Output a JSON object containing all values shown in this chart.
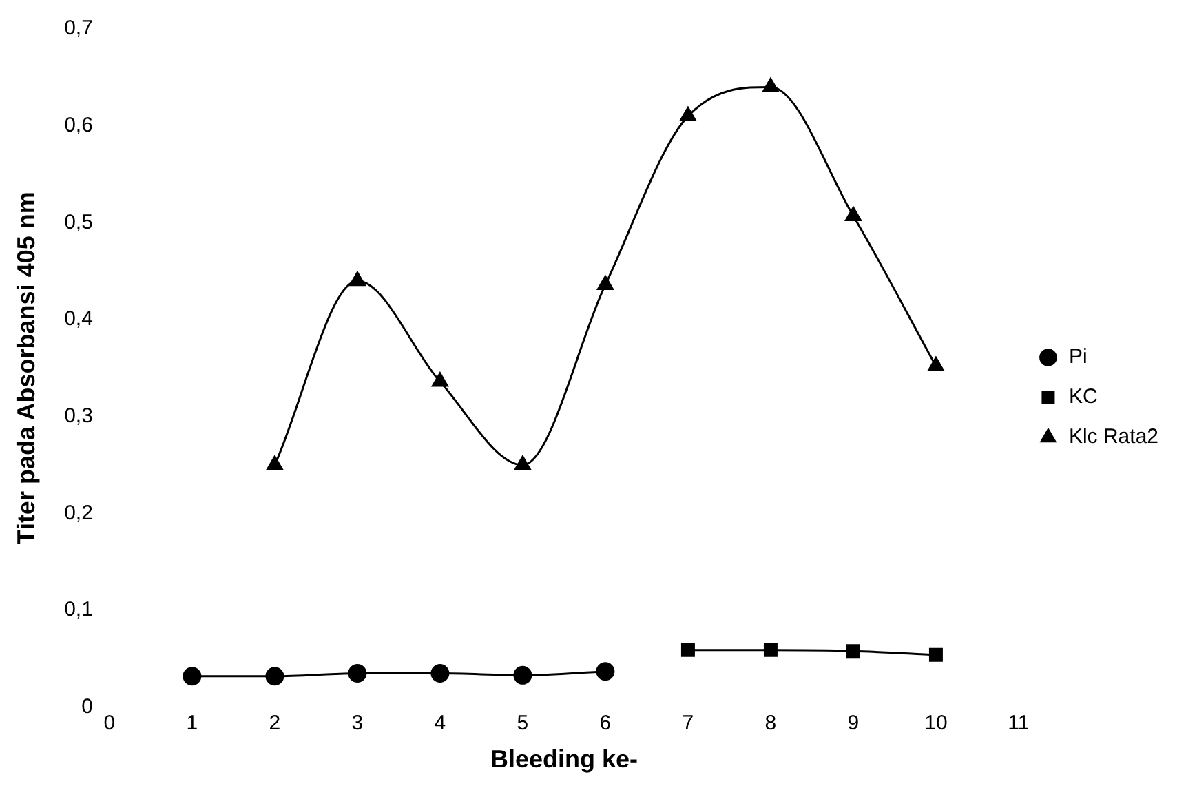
{
  "chart_data": {
    "type": "line",
    "xlabel": "Bleeding ke-",
    "ylabel": "Titer pada Absorbansi 405 nm",
    "xlim": [
      0,
      11
    ],
    "xticks": [
      0,
      1,
      2,
      3,
      4,
      5,
      6,
      7,
      8,
      9,
      10,
      11
    ],
    "ylim": [
      0,
      0.7
    ],
    "yticks": [
      {
        "value": 0,
        "label": "0"
      },
      {
        "value": 0.1,
        "label": "0,1"
      },
      {
        "value": 0.2,
        "label": "0,2"
      },
      {
        "value": 0.3,
        "label": "0,3"
      },
      {
        "value": 0.4,
        "label": "0,4"
      },
      {
        "value": 0.5,
        "label": "0,5"
      },
      {
        "value": 0.6,
        "label": "0,6"
      },
      {
        "value": 0.7,
        "label": "0,7"
      }
    ],
    "grid": false,
    "legend": "right",
    "series": [
      {
        "name": "Pi",
        "color": "#000000",
        "marker": "circle",
        "x": [
          1,
          2,
          3,
          4,
          5,
          6
        ],
        "values": [
          0.032,
          0.032,
          0.035,
          0.035,
          0.033,
          0.037
        ]
      },
      {
        "name": "KC",
        "color": "#000000",
        "marker": "square",
        "x": [
          7,
          8,
          9,
          10
        ],
        "values": [
          0.059,
          0.059,
          0.058,
          0.054
        ]
      },
      {
        "name": "Klc Rata2",
        "color": "#000000",
        "marker": "triangle",
        "x": [
          2,
          3,
          4,
          5,
          6,
          7,
          8,
          9,
          10
        ],
        "values": [
          0.25,
          0.44,
          0.336,
          0.25,
          0.436,
          0.61,
          0.64,
          0.507,
          0.352
        ]
      }
    ]
  }
}
